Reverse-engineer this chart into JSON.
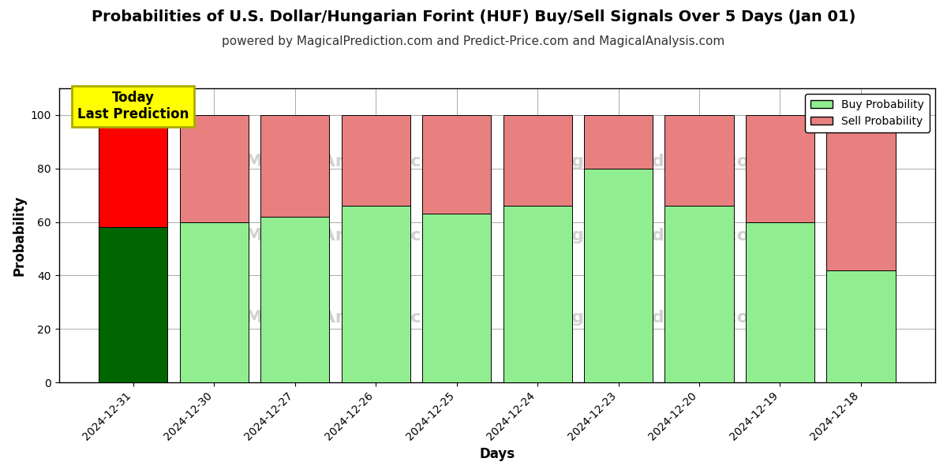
{
  "title": "Probabilities of U.S. Dollar/Hungarian Forint (HUF) Buy/Sell Signals Over 5 Days (Jan 01)",
  "subtitle": "powered by MagicalPrediction.com and Predict-Price.com and MagicalAnalysis.com",
  "xlabel": "Days",
  "ylabel": "Probability",
  "categories": [
    "2024-12-31",
    "2024-12-30",
    "2024-12-27",
    "2024-12-26",
    "2024-12-25",
    "2024-12-24",
    "2024-12-23",
    "2024-12-20",
    "2024-12-19",
    "2024-12-18"
  ],
  "buy_values": [
    58,
    60,
    62,
    66,
    63,
    66,
    80,
    66,
    60,
    42
  ],
  "sell_values": [
    42,
    40,
    38,
    34,
    37,
    34,
    20,
    34,
    40,
    58
  ],
  "first_bar_buy_color": "#006400",
  "first_bar_sell_color": "#FF0000",
  "other_buy_color": "#90EE90",
  "other_sell_color": "#E88080",
  "bar_edge_color": "#000000",
  "ylim_max": 110,
  "yticks": [
    0,
    20,
    40,
    60,
    80,
    100
  ],
  "dashed_line_y": 110,
  "annotation_text": "Today\nLast Prediction",
  "annotation_bg": "#FFFF00",
  "legend_buy_label": "Buy Probability",
  "legend_sell_label": "Sell Probability",
  "watermark_color": "#CCCCCC",
  "grid_color": "#AAAAAA",
  "background_color": "#FFFFFF",
  "title_fontsize": 14,
  "subtitle_fontsize": 11,
  "axis_label_fontsize": 12,
  "tick_fontsize": 10,
  "bar_width": 0.85
}
